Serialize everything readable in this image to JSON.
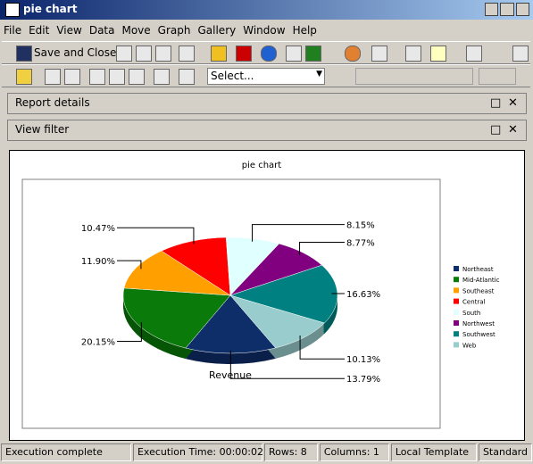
{
  "window": {
    "title": "pie chart"
  },
  "menu": [
    "File",
    "Edit",
    "View",
    "Data",
    "Move",
    "Graph",
    "Gallery",
    "Window",
    "Help"
  ],
  "toolbar": {
    "save_button": "Save and Close",
    "select": "Select..."
  },
  "panels": [
    "Report details",
    "View filter"
  ],
  "chart_data": {
    "type": "pie",
    "title": "pie chart",
    "x_label": "Revenue",
    "categories": [
      "Northeast",
      "Mid-Atlantic",
      "Southeast",
      "Central",
      "South",
      "Northwest",
      "Southwest",
      "Web"
    ],
    "values": [
      13.79,
      20.15,
      11.9,
      10.47,
      8.15,
      8.77,
      16.63,
      10.13
    ],
    "value_labels": [
      "13.79%",
      "20.15%",
      "11.90%",
      "10.47%",
      "8.15%",
      "8.77%",
      "16.63%",
      "10.13%"
    ],
    "colors": [
      "#0e2e6a",
      "#0a7a0a",
      "#ffa000",
      "#ff0000",
      "#e0ffff",
      "#800080",
      "#008080",
      "#99cccc"
    ]
  },
  "status_bar": [
    "Execution complete",
    "Execution Time: 00:00:02",
    "Rows: 8",
    "Columns: 1",
    "Local Template",
    "Standard"
  ]
}
